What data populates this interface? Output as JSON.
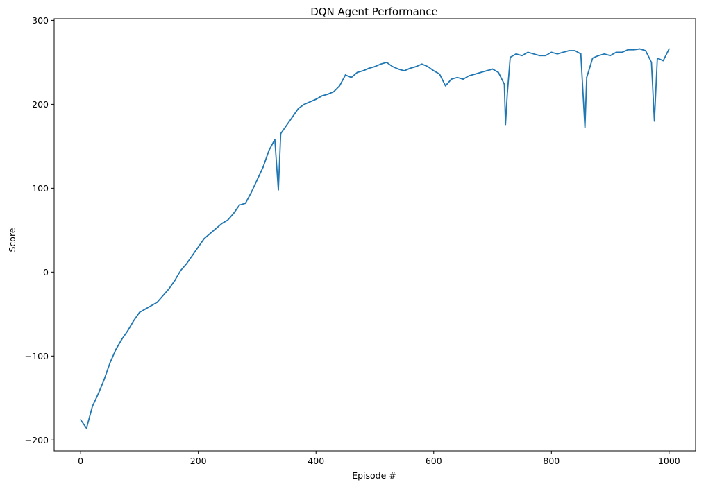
{
  "chart_data": {
    "type": "line",
    "title": "DQN Agent Performance",
    "xlabel": "Episode #",
    "ylabel": "Score",
    "xlim": [
      -45,
      1045
    ],
    "ylim": [
      -213,
      302
    ],
    "xticks": [
      0,
      200,
      400,
      600,
      800,
      1000
    ],
    "yticks": [
      -200,
      -100,
      0,
      100,
      200,
      300
    ],
    "xtick_labels": [
      "0",
      "200",
      "400",
      "600",
      "800",
      "1000"
    ],
    "ytick_labels": [
      "−200",
      "−100",
      "0",
      "100",
      "200",
      "300"
    ],
    "grid": false,
    "legend": "none",
    "line_color": "#1f77b4",
    "series": [
      {
        "x": [
          0,
          10,
          20,
          30,
          40,
          50,
          60,
          70,
          80,
          90,
          100,
          110,
          120,
          130,
          140,
          150,
          160,
          170,
          180,
          190,
          200,
          210,
          220,
          230,
          240,
          250,
          260,
          270,
          280,
          290,
          300,
          310,
          320,
          330,
          336,
          340,
          350,
          360,
          370,
          380,
          390,
          400,
          410,
          420,
          430,
          440,
          450,
          460,
          470,
          480,
          490,
          500,
          510,
          520,
          530,
          540,
          550,
          560,
          570,
          580,
          590,
          600,
          610,
          620,
          630,
          640,
          650,
          660,
          670,
          680,
          690,
          700,
          710,
          720,
          722,
          725,
          730,
          740,
          750,
          760,
          770,
          780,
          790,
          800,
          810,
          820,
          830,
          840,
          850,
          857,
          860,
          870,
          880,
          890,
          900,
          910,
          920,
          930,
          940,
          950,
          960,
          970,
          975,
          980,
          990,
          1000
        ],
        "y": [
          -176,
          -186,
          -160,
          -145,
          -128,
          -108,
          -92,
          -80,
          -70,
          -58,
          -48,
          -44,
          -40,
          -36,
          -28,
          -20,
          -10,
          2,
          10,
          20,
          30,
          40,
          46,
          52,
          58,
          62,
          70,
          80,
          82,
          95,
          110,
          125,
          145,
          158,
          98,
          165,
          175,
          185,
          195,
          200,
          203,
          206,
          210,
          212,
          215,
          222,
          235,
          232,
          238,
          240,
          243,
          245,
          248,
          250,
          245,
          242,
          240,
          243,
          245,
          248,
          245,
          240,
          236,
          222,
          230,
          232,
          230,
          234,
          236,
          238,
          240,
          242,
          238,
          224,
          176,
          212,
          256,
          260,
          258,
          262,
          260,
          258,
          258,
          262,
          260,
          262,
          264,
          264,
          260,
          172,
          232,
          255,
          258,
          260,
          258,
          262,
          262,
          265,
          265,
          266,
          264,
          250,
          180,
          255,
          252,
          266
        ]
      }
    ]
  }
}
